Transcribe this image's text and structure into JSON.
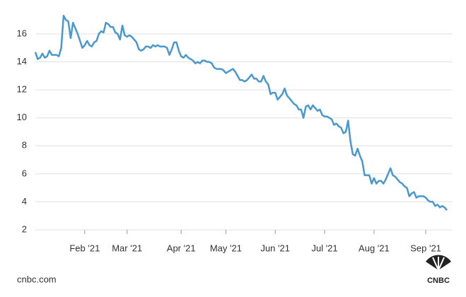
{
  "chart_data": {
    "type": "line",
    "categories": [
      null,
      null,
      null,
      null,
      null,
      null,
      null,
      null,
      null,
      null,
      null,
      null,
      null,
      null,
      null,
      null,
      null,
      null,
      null,
      null,
      null,
      "Feb '21",
      null,
      null,
      null,
      null,
      null,
      null,
      null,
      null,
      null,
      null,
      null,
      null,
      null,
      null,
      null,
      null,
      null,
      "Mar '21",
      null,
      null,
      null,
      null,
      null,
      null,
      null,
      null,
      null,
      null,
      null,
      null,
      null,
      null,
      null,
      null,
      null,
      null,
      null,
      null,
      null,
      null,
      "Apr '21",
      null,
      null,
      null,
      null,
      null,
      null,
      null,
      null,
      null,
      null,
      null,
      null,
      null,
      null,
      null,
      null,
      null,
      null,
      "May '21",
      null,
      null,
      null,
      null,
      null,
      null,
      null,
      null,
      null,
      null,
      null,
      null,
      null,
      null,
      null,
      null,
      null,
      null,
      null,
      null,
      "Jun '21",
      null,
      null,
      null,
      null,
      null,
      null,
      null,
      null,
      null,
      null,
      null,
      null,
      null,
      null,
      null,
      null,
      null,
      null,
      null,
      null,
      "Jul '21",
      null,
      null,
      null,
      null,
      null,
      null,
      null,
      null,
      null,
      null,
      null,
      null,
      null,
      null,
      null,
      null,
      null,
      null,
      null,
      null,
      "Aug '21",
      null,
      null,
      null,
      null,
      null,
      null,
      null,
      null,
      null,
      null,
      null,
      null,
      null,
      null,
      null,
      null,
      null,
      null,
      null,
      null,
      null,
      "Sep '21",
      null,
      null,
      null,
      null,
      null,
      null,
      null,
      null,
      null
    ],
    "series": [
      {
        "color": "#4a98cf",
        "values": [
          14.7,
          14.2,
          14.3,
          14.6,
          14.3,
          14.4,
          14.8,
          14.5,
          14.5,
          14.5,
          14.4,
          15.0,
          17.3,
          17.0,
          16.9,
          15.7,
          16.8,
          16.4,
          16.0,
          15.5,
          15.0,
          15.2,
          15.5,
          15.2,
          15.1,
          15.4,
          15.5,
          16.0,
          16.2,
          16.1,
          16.8,
          16.7,
          16.5,
          16.5,
          16.1,
          16.0,
          15.6,
          16.6,
          15.9,
          15.8,
          15.9,
          15.8,
          15.6,
          15.4,
          14.9,
          14.8,
          14.9,
          15.1,
          15.1,
          15.0,
          15.2,
          15.1,
          15.2,
          15.1,
          15.1,
          15.1,
          15.0,
          14.5,
          14.9,
          15.4,
          15.4,
          14.8,
          14.4,
          14.3,
          14.5,
          14.3,
          14.2,
          14.1,
          13.9,
          14.0,
          13.9,
          14.1,
          14.1,
          14.0,
          14.0,
          13.9,
          13.6,
          13.5,
          13.5,
          13.5,
          13.4,
          13.2,
          13.3,
          13.4,
          13.5,
          13.3,
          13.0,
          12.7,
          12.7,
          12.6,
          12.7,
          12.9,
          13.1,
          12.8,
          12.8,
          12.6,
          12.6,
          13.0,
          12.6,
          12.4,
          11.7,
          11.8,
          11.8,
          11.3,
          11.5,
          11.7,
          12.1,
          11.6,
          11.4,
          11.2,
          11.0,
          10.9,
          10.6,
          10.6,
          10.0,
          10.8,
          10.9,
          10.6,
          10.9,
          10.7,
          10.5,
          10.6,
          10.2,
          10.1,
          10.1,
          10.0,
          9.9,
          9.5,
          9.6,
          9.4,
          9.3,
          8.9,
          9.0,
          9.8,
          8.3,
          7.4,
          7.3,
          7.8,
          7.3,
          6.9,
          5.9,
          5.9,
          5.9,
          5.3,
          5.7,
          5.3,
          5.5,
          5.5,
          5.3,
          5.6,
          6.0,
          6.4,
          5.9,
          5.8,
          5.6,
          5.4,
          5.3,
          5.1,
          5.0,
          4.4,
          4.6,
          4.7,
          4.3,
          4.4,
          4.4,
          4.4,
          4.3,
          4.1,
          4.0,
          4.0,
          3.7,
          3.8,
          3.6,
          3.7,
          3.6,
          3.4
        ]
      }
    ],
    "ylim": [
      2,
      18
    ],
    "yticks": [
      2,
      4,
      6,
      8,
      10,
      12,
      14,
      16
    ],
    "grid": true,
    "source": "cnbc.com",
    "logo_text": "CNBC"
  }
}
